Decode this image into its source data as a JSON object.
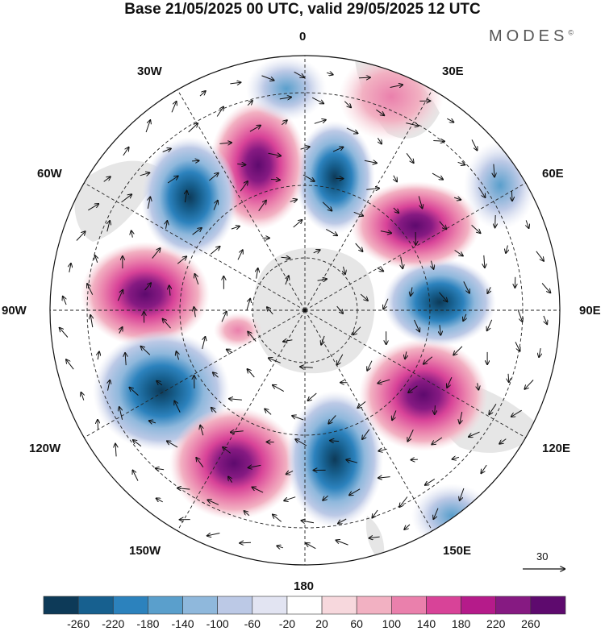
{
  "header": {
    "title": "Base 21/05/2025 00 UTC, valid 29/05/2025 12 UTC",
    "brand": "MODES",
    "brand_mark": "©"
  },
  "map": {
    "projection": "south-polar-stereographic",
    "longitude_labels": {
      "top": "0",
      "bottom": "180",
      "left": "90W",
      "right": "90E",
      "upper_left_1": "30W",
      "upper_left_2": "60W",
      "upper_right_1": "30E",
      "upper_right_2": "60E",
      "lower_left_1": "120W",
      "lower_left_2": "150W",
      "lower_right_1": "120E",
      "lower_right_2": "150E"
    },
    "vector_reference": "30",
    "anomaly_centers": [
      {
        "kind": "positive",
        "sector": "30W",
        "peak": 240
      },
      {
        "kind": "negative",
        "sector": "45W",
        "peak": -180
      },
      {
        "kind": "negative",
        "sector": "0",
        "peak": -120
      },
      {
        "kind": "negative",
        "sector": "15E",
        "peak": -180
      },
      {
        "kind": "positive",
        "sector": "30E",
        "peak": 100
      },
      {
        "kind": "positive",
        "sector": "60E",
        "peak": 240
      },
      {
        "kind": "negative",
        "sector": "90E",
        "peak": -180
      },
      {
        "kind": "positive",
        "sector": "120E",
        "peak": 240
      },
      {
        "kind": "negative",
        "sector": "165E",
        "peak": -220
      },
      {
        "kind": "positive",
        "sector": "150W",
        "peak": 260
      },
      {
        "kind": "negative",
        "sector": "120W",
        "peak": -260
      },
      {
        "kind": "positive",
        "sector": "90W",
        "peak": 260
      }
    ],
    "colors": {
      "positive_peak": "#5e0a6e",
      "negative_peak": "#0d3a58",
      "land": "#e6e6e6"
    }
  },
  "colorbar": {
    "ticks": [
      "-260",
      "-220",
      "-180",
      "-140",
      "-100",
      "-60",
      "-20",
      "20",
      "60",
      "100",
      "140",
      "180",
      "220",
      "260"
    ],
    "colors": [
      "#0d3a58",
      "#17608f",
      "#2c82bd",
      "#5a9fcc",
      "#8fb8dc",
      "#bcc9e6",
      "#e2e4f2",
      "#ffffff",
      "#f7d8dd",
      "#f2b1c2",
      "#ea80ac",
      "#d84398",
      "#b51b8a",
      "#861a82",
      "#5e0a6e"
    ]
  }
}
